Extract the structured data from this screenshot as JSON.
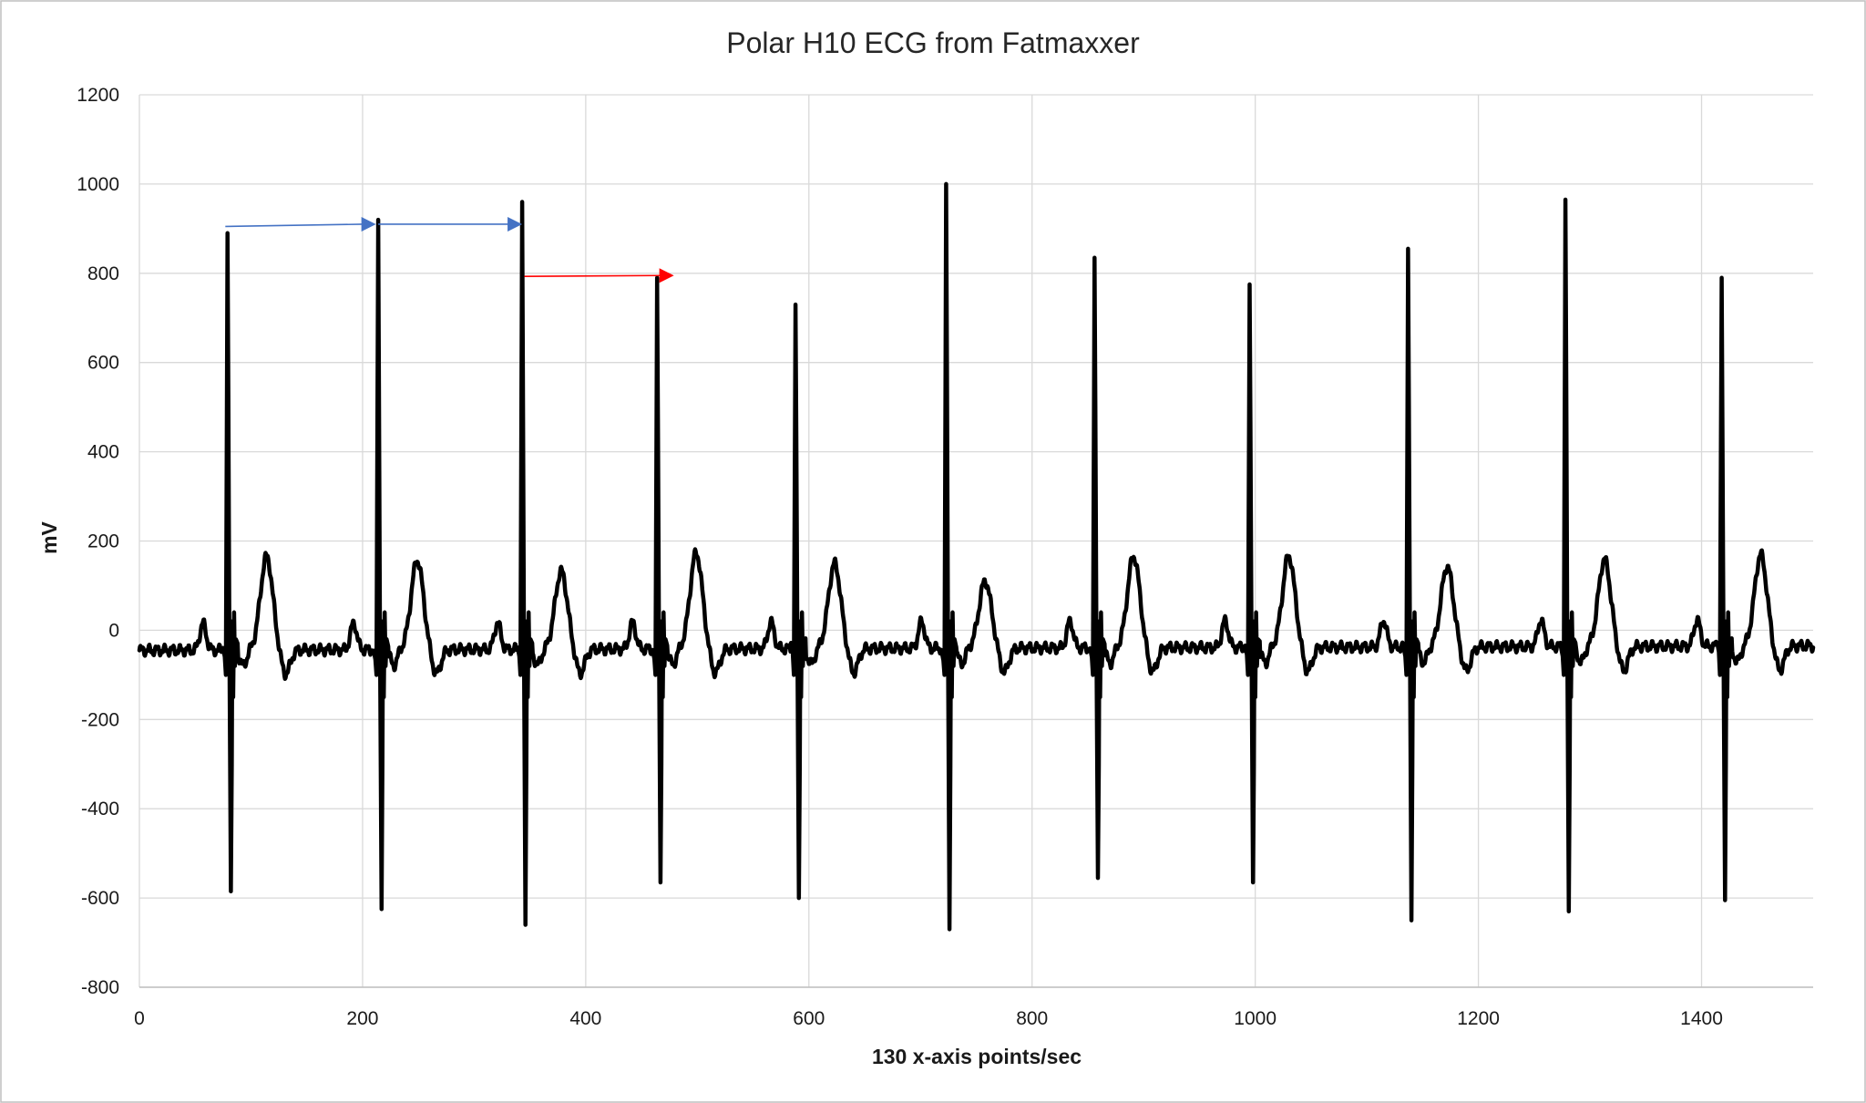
{
  "chart_data": {
    "type": "line",
    "title": "Polar H10 ECG from Fatmaxxer",
    "xlabel": "130 x-axis points/sec",
    "ylabel": "mV",
    "xlim": [
      0,
      1500
    ],
    "ylim": [
      -800,
      1200
    ],
    "x_ticks": [
      0,
      200,
      400,
      600,
      800,
      1000,
      1200,
      1400
    ],
    "y_ticks": [
      -800,
      -600,
      -400,
      -200,
      0,
      200,
      400,
      600,
      800,
      1000,
      1200
    ],
    "x_tick_labels": [
      "0",
      "200",
      "400",
      "600",
      "800",
      "1000",
      "1200",
      "1400"
    ],
    "y_tick_labels": [
      "-800",
      "-600",
      "-400",
      "-200",
      "0",
      "200",
      "400",
      "600",
      "800",
      "1000",
      "1200"
    ],
    "grid": true,
    "legend": "none",
    "series": [
      {
        "color": "#000000",
        "beats": [
          {
            "r_x": 79,
            "r_peak": 890,
            "s_trough": -585,
            "t_peak": 155
          },
          {
            "r_x": 214,
            "r_peak": 920,
            "s_trough": -625,
            "t_peak": 145
          },
          {
            "r_x": 343,
            "r_peak": 960,
            "s_trough": -660,
            "t_peak": 120
          },
          {
            "r_x": 464,
            "r_peak": 790,
            "s_trough": -565,
            "t_peak": 160
          },
          {
            "r_x": 588,
            "r_peak": 730,
            "s_trough": -600,
            "t_peak": 135
          },
          {
            "r_x": 723,
            "r_peak": 1000,
            "s_trough": -670,
            "t_peak": 95
          },
          {
            "r_x": 856,
            "r_peak": 835,
            "s_trough": -555,
            "t_peak": 150
          },
          {
            "r_x": 995,
            "r_peak": 775,
            "s_trough": -565,
            "t_peak": 150
          },
          {
            "r_x": 1137,
            "r_peak": 855,
            "s_trough": -650,
            "t_peak": 125
          },
          {
            "r_x": 1278,
            "r_peak": 965,
            "s_trough": -630,
            "t_peak": 140
          },
          {
            "r_x": 1418,
            "r_peak": 790,
            "s_trough": -605,
            "t_peak": 150
          }
        ],
        "baseline_start": -45,
        "baseline_end": -35
      }
    ],
    "annotations": [
      {
        "type": "arrow",
        "color": "#4472C4",
        "x_from": 77,
        "y_from": 905,
        "x_to": 212,
        "y_to": 910
      },
      {
        "type": "arrow",
        "color": "#4472C4",
        "x_from": 214,
        "y_from": 910,
        "x_to": 343,
        "y_to": 910
      },
      {
        "type": "arrow",
        "color": "#FF0000",
        "x_from": 345,
        "y_from": 793,
        "x_to": 479,
        "y_to": 795
      }
    ]
  }
}
